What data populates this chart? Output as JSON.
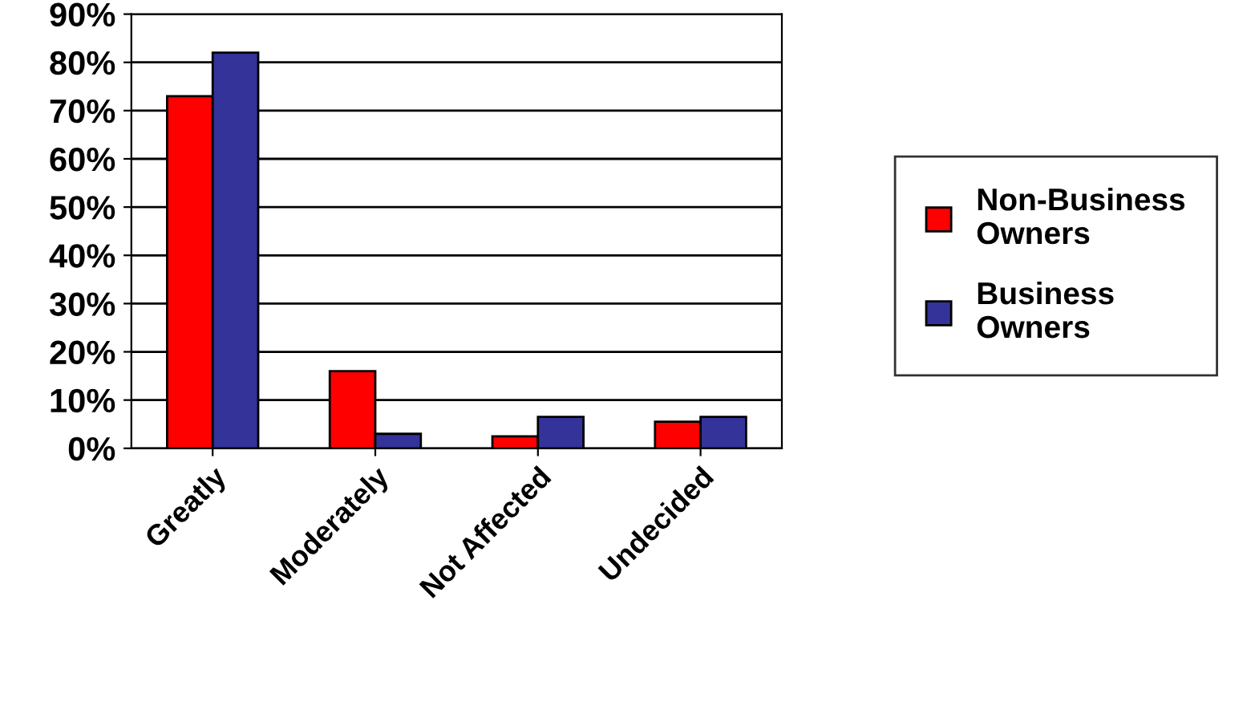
{
  "chart_data": {
    "type": "bar",
    "categories": [
      "Greatly",
      "Moderately",
      "Not Affected",
      "Undecided"
    ],
    "series": [
      {
        "name": "Non-Business Owners",
        "color": "#ff0000",
        "values": [
          73,
          16,
          2.5,
          5.5
        ]
      },
      {
        "name": "Business Owners",
        "color": "#333399",
        "values": [
          82,
          3,
          6.5,
          6.5
        ]
      }
    ],
    "ylim": [
      0,
      90
    ],
    "yticks": [
      {
        "value": 0,
        "label": "0%"
      },
      {
        "value": 10,
        "label": "10%"
      },
      {
        "value": 20,
        "label": "20%"
      },
      {
        "value": 30,
        "label": "30%"
      },
      {
        "value": 40,
        "label": "40%"
      },
      {
        "value": 50,
        "label": "50%"
      },
      {
        "value": 60,
        "label": "60%"
      },
      {
        "value": 70,
        "label": "70%"
      },
      {
        "value": 80,
        "label": "80%"
      },
      {
        "value": 90,
        "label": "90%"
      }
    ],
    "grid": "y",
    "legend": "right"
  }
}
